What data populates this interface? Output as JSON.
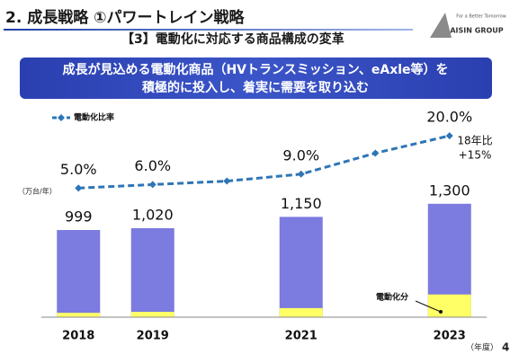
{
  "header": {
    "title": "2. 成長戦略 ①パワートレイン戦略",
    "subtitle": "【3】電動化に対応する商品構成の変革"
  },
  "logo": {
    "tagline": "For a Better Tomorrow",
    "name": "AISIN GROUP"
  },
  "banner": [
    "成長が見込める電動化商品（HVトランスミッション、eAxle等）を",
    "積極的に投入し、着実に需要を取り込む"
  ],
  "page_number": "4",
  "chart_data": {
    "type": "bar",
    "categories": [
      "2018",
      "2019",
      null,
      "2021",
      null,
      "2023"
    ],
    "unit_label": "（万台/年）",
    "x_label": "（年度）",
    "series": [
      {
        "values": [
          999,
          1020,
          null,
          1150,
          null,
          1300
        ],
        "value_labels": [
          "999",
          "1,020",
          null,
          "1,150",
          null,
          "1,300"
        ],
        "color": "#7b7be0"
      },
      {
        "name": "電動化分",
        "values": [
          50,
          61,
          null,
          104,
          null,
          260
        ],
        "color": "#ffff66"
      },
      {
        "name": "電動化比率",
        "type": "line",
        "axis": "y2",
        "values": [
          5.0,
          6.0,
          7.0,
          9.0,
          15.0,
          20.0
        ],
        "value_labels": [
          "5.0%",
          "6.0%",
          null,
          "9.0%",
          null,
          "20.0%"
        ],
        "color": "#2e75b6"
      }
    ],
    "annotations": [
      "18年比",
      "+15%"
    ],
    "ylim": [
      0,
      2400
    ],
    "y2lim": [
      -32,
      28
    ],
    "legend": "top-left"
  }
}
